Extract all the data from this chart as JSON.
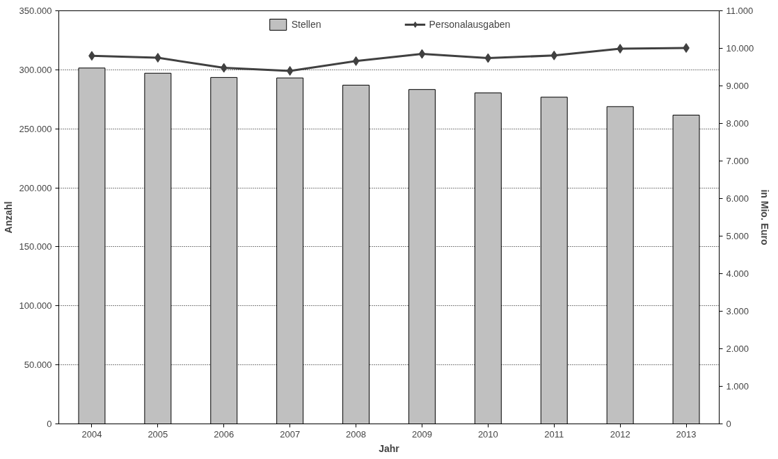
{
  "chart_data": {
    "type": "bar",
    "xlabel": "Jahr",
    "ylabel": "Anzahl",
    "y2label": "in Mio. Euro",
    "categories": [
      "2004",
      "2005",
      "2006",
      "2007",
      "2008",
      "2009",
      "2010",
      "2011",
      "2012",
      "2013"
    ],
    "series": [
      {
        "name": "Stellen",
        "color": "#c0c0c0",
        "values": [
          301500,
          297100,
          293500,
          293100,
          287000,
          283300,
          280400,
          276800,
          268800,
          261600
        ]
      },
      {
        "name": "Personalausgaben",
        "type": "line",
        "axis": "y2",
        "color": "#404040",
        "marker": "diamond",
        "line_style": "solid",
        "values": [
          9800,
          9750,
          9480,
          9400,
          9660,
          9850,
          9740,
          9810,
          9990,
          10010
        ]
      }
    ],
    "ylim": [
      0,
      350000
    ],
    "yticks": [
      0,
      {
        "value": 50000,
        "label": "50.000"
      },
      {
        "value": 100000,
        "label": "100.000"
      },
      {
        "value": 150000,
        "label": "150.000"
      },
      {
        "value": 200000,
        "label": "200.000"
      },
      {
        "value": 250000,
        "label": "250.000"
      },
      {
        "value": 300000,
        "label": "300.000"
      },
      {
        "value": 350000,
        "label": "350.000"
      }
    ],
    "y2lim": [
      0,
      11000
    ],
    "y2ticks": [
      0,
      {
        "value": 1000,
        "label": "1.000"
      },
      {
        "value": 2000,
        "label": "2.000"
      },
      {
        "value": 3000,
        "label": "3.000"
      },
      {
        "value": 4000,
        "label": "4.000"
      },
      {
        "value": 5000,
        "label": "5.000"
      },
      {
        "value": 6000,
        "label": "6.000"
      },
      {
        "value": 7000,
        "label": "7.000"
      },
      {
        "value": 8000,
        "label": "8.000"
      },
      {
        "value": 9000,
        "label": "9.000"
      },
      {
        "value": 10000,
        "label": "10.000"
      },
      {
        "value": 11000,
        "label": "11.000"
      }
    ],
    "grid": "y",
    "legend": "top"
  }
}
